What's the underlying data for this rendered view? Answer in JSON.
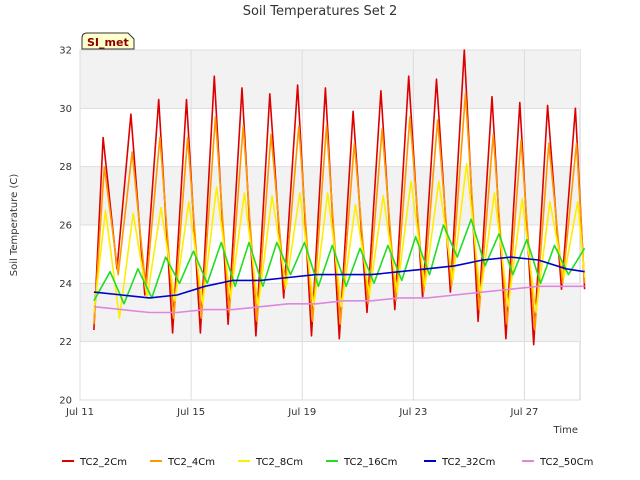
{
  "chart_data": {
    "type": "line",
    "title": "Soil Temperatures Set 2",
    "xlabel": "Time",
    "ylabel": "Soil Temperature (C)",
    "badge": "SI_met",
    "xlim": [
      "2023-07-11",
      "2023-07-29"
    ],
    "ylim": [
      20,
      32
    ],
    "yticks": [
      20,
      22,
      24,
      26,
      28,
      30,
      32
    ],
    "xticks": [
      {
        "date": "2023-07-11",
        "label": "Jul 11"
      },
      {
        "date": "2023-07-15",
        "label": "Jul 15"
      },
      {
        "date": "2023-07-19",
        "label": "Jul 19"
      },
      {
        "date": "2023-07-23",
        "label": "Jul 23"
      },
      {
        "date": "2023-07-27",
        "label": "Jul 27"
      }
    ],
    "grid": true,
    "legend_position": "bottom",
    "series": [
      {
        "name": "TC2_2Cm",
        "color": "#dd0000",
        "x": [
          "2023-07-11 12:00",
          "2023-07-11 20:00",
          "2023-07-12 08:00",
          "2023-07-12 20:00",
          "2023-07-13 08:00",
          "2023-07-13 20:00",
          "2023-07-14 08:00",
          "2023-07-14 20:00",
          "2023-07-15 08:00",
          "2023-07-15 20:00",
          "2023-07-16 08:00",
          "2023-07-16 20:00",
          "2023-07-17 08:00",
          "2023-07-17 20:00",
          "2023-07-18 08:00",
          "2023-07-18 20:00",
          "2023-07-19 08:00",
          "2023-07-19 20:00",
          "2023-07-20 08:00",
          "2023-07-20 20:00",
          "2023-07-21 08:00",
          "2023-07-21 20:00",
          "2023-07-22 08:00",
          "2023-07-22 20:00",
          "2023-07-23 08:00",
          "2023-07-23 20:00",
          "2023-07-24 08:00",
          "2023-07-24 20:00",
          "2023-07-25 08:00",
          "2023-07-25 20:00",
          "2023-07-26 08:00",
          "2023-07-26 20:00",
          "2023-07-27 08:00",
          "2023-07-27 20:00",
          "2023-07-28 08:00",
          "2023-07-28 20:00",
          "2023-07-29 04:00"
        ],
        "y": [
          22.4,
          29.0,
          24.5,
          29.8,
          23.6,
          30.3,
          22.3,
          30.3,
          22.3,
          31.1,
          22.6,
          30.7,
          22.2,
          30.5,
          23.5,
          30.8,
          22.2,
          30.7,
          22.1,
          29.9,
          23.0,
          30.6,
          23.1,
          31.1,
          23.5,
          31.0,
          23.7,
          32.0,
          22.7,
          30.4,
          22.1,
          30.2,
          21.9,
          30.1,
          23.8,
          30.0,
          23.8
        ]
      },
      {
        "name": "TC2_4Cm",
        "color": "#ff9900",
        "x": [
          "2023-07-11 12:00",
          "2023-07-11 21:00",
          "2023-07-12 09:00",
          "2023-07-12 21:00",
          "2023-07-13 09:00",
          "2023-07-13 21:00",
          "2023-07-14 09:00",
          "2023-07-14 21:00",
          "2023-07-15 09:00",
          "2023-07-15 21:00",
          "2023-07-16 09:00",
          "2023-07-16 21:00",
          "2023-07-17 09:00",
          "2023-07-17 21:00",
          "2023-07-18 09:00",
          "2023-07-18 21:00",
          "2023-07-19 09:00",
          "2023-07-19 21:00",
          "2023-07-20 09:00",
          "2023-07-20 21:00",
          "2023-07-21 09:00",
          "2023-07-21 21:00",
          "2023-07-22 09:00",
          "2023-07-22 21:00",
          "2023-07-23 09:00",
          "2023-07-23 21:00",
          "2023-07-24 09:00",
          "2023-07-24 21:00",
          "2023-07-25 09:00",
          "2023-07-25 21:00",
          "2023-07-26 09:00",
          "2023-07-26 21:00",
          "2023-07-27 09:00",
          "2023-07-27 21:00",
          "2023-07-28 09:00",
          "2023-07-28 21:00",
          "2023-07-29 04:00"
        ],
        "y": [
          22.6,
          28.0,
          24.3,
          28.5,
          23.8,
          29.0,
          22.8,
          29.0,
          22.8,
          29.7,
          23.0,
          29.4,
          22.7,
          29.1,
          23.8,
          29.4,
          22.7,
          29.4,
          22.6,
          28.8,
          23.3,
          29.3,
          23.4,
          29.7,
          23.7,
          29.6,
          23.9,
          30.5,
          23.1,
          29.1,
          22.6,
          28.9,
          22.4,
          28.8,
          24.0,
          28.8,
          24.0
        ]
      },
      {
        "name": "TC2_8Cm",
        "color": "#ffee00",
        "x": [
          "2023-07-11 12:00",
          "2023-07-11 22:00",
          "2023-07-12 10:00",
          "2023-07-12 22:00",
          "2023-07-13 10:00",
          "2023-07-13 22:00",
          "2023-07-14 10:00",
          "2023-07-14 22:00",
          "2023-07-15 10:00",
          "2023-07-15 22:00",
          "2023-07-16 10:00",
          "2023-07-16 22:00",
          "2023-07-17 10:00",
          "2023-07-17 22:00",
          "2023-07-18 10:00",
          "2023-07-18 22:00",
          "2023-07-19 10:00",
          "2023-07-19 22:00",
          "2023-07-20 10:00",
          "2023-07-20 22:00",
          "2023-07-21 10:00",
          "2023-07-21 22:00",
          "2023-07-22 10:00",
          "2023-07-22 22:00",
          "2023-07-23 10:00",
          "2023-07-23 22:00",
          "2023-07-24 10:00",
          "2023-07-24 22:00",
          "2023-07-25 10:00",
          "2023-07-25 22:00",
          "2023-07-26 10:00",
          "2023-07-26 22:00",
          "2023-07-27 10:00",
          "2023-07-27 22:00",
          "2023-07-28 10:00",
          "2023-07-28 22:00",
          "2023-07-29 04:00"
        ],
        "y": [
          23.0,
          26.5,
          22.8,
          26.4,
          23.5,
          26.6,
          23.4,
          26.8,
          23.3,
          27.3,
          23.5,
          27.1,
          23.2,
          27.0,
          23.9,
          27.1,
          23.2,
          27.1,
          23.2,
          26.7,
          23.6,
          27.0,
          23.7,
          27.5,
          23.9,
          27.5,
          24.1,
          28.1,
          23.6,
          27.1,
          23.2,
          26.9,
          23.0,
          26.8,
          24.2,
          26.8,
          24.2
        ]
      },
      {
        "name": "TC2_16Cm",
        "color": "#22dd22",
        "x": [
          "2023-07-11 12:00",
          "2023-07-12 02:00",
          "2023-07-12 14:00",
          "2023-07-13 02:00",
          "2023-07-13 14:00",
          "2023-07-14 02:00",
          "2023-07-14 14:00",
          "2023-07-15 02:00",
          "2023-07-15 14:00",
          "2023-07-16 02:00",
          "2023-07-16 14:00",
          "2023-07-17 02:00",
          "2023-07-17 14:00",
          "2023-07-18 02:00",
          "2023-07-18 14:00",
          "2023-07-19 02:00",
          "2023-07-19 14:00",
          "2023-07-20 02:00",
          "2023-07-20 14:00",
          "2023-07-21 02:00",
          "2023-07-21 14:00",
          "2023-07-22 02:00",
          "2023-07-22 14:00",
          "2023-07-23 02:00",
          "2023-07-23 14:00",
          "2023-07-24 02:00",
          "2023-07-24 14:00",
          "2023-07-25 02:00",
          "2023-07-25 14:00",
          "2023-07-26 02:00",
          "2023-07-26 14:00",
          "2023-07-27 02:00",
          "2023-07-27 14:00",
          "2023-07-28 02:00",
          "2023-07-28 14:00",
          "2023-07-29 04:00"
        ],
        "y": [
          23.4,
          24.4,
          23.3,
          24.5,
          23.5,
          24.9,
          24.0,
          25.1,
          24.0,
          25.4,
          23.9,
          25.4,
          23.9,
          25.4,
          24.3,
          25.4,
          23.9,
          25.3,
          23.9,
          25.2,
          24.0,
          25.3,
          24.1,
          25.6,
          24.3,
          26.0,
          24.9,
          26.2,
          24.6,
          25.7,
          24.3,
          25.5,
          24.0,
          25.3,
          24.3,
          25.2
        ]
      },
      {
        "name": "TC2_32Cm",
        "color": "#0000cc",
        "x": [
          "2023-07-11 12:00",
          "2023-07-12 12:00",
          "2023-07-13 12:00",
          "2023-07-14 12:00",
          "2023-07-15 12:00",
          "2023-07-16 12:00",
          "2023-07-17 12:00",
          "2023-07-18 12:00",
          "2023-07-19 12:00",
          "2023-07-20 12:00",
          "2023-07-21 12:00",
          "2023-07-22 12:00",
          "2023-07-23 12:00",
          "2023-07-24 12:00",
          "2023-07-25 12:00",
          "2023-07-26 12:00",
          "2023-07-27 12:00",
          "2023-07-28 12:00",
          "2023-07-29 04:00"
        ],
        "y": [
          23.7,
          23.6,
          23.5,
          23.6,
          23.9,
          24.1,
          24.1,
          24.2,
          24.3,
          24.3,
          24.3,
          24.4,
          24.5,
          24.6,
          24.8,
          24.9,
          24.8,
          24.5,
          24.4
        ]
      },
      {
        "name": "TC2_50Cm",
        "color": "#dd88dd",
        "x": [
          "2023-07-11 12:00",
          "2023-07-12 12:00",
          "2023-07-13 12:00",
          "2023-07-14 12:00",
          "2023-07-15 12:00",
          "2023-07-16 12:00",
          "2023-07-17 12:00",
          "2023-07-18 12:00",
          "2023-07-19 12:00",
          "2023-07-20 12:00",
          "2023-07-21 12:00",
          "2023-07-22 12:00",
          "2023-07-23 12:00",
          "2023-07-24 12:00",
          "2023-07-25 12:00",
          "2023-07-26 12:00",
          "2023-07-27 12:00",
          "2023-07-28 12:00",
          "2023-07-29 04:00"
        ],
        "y": [
          23.2,
          23.1,
          23.0,
          23.0,
          23.1,
          23.1,
          23.2,
          23.3,
          23.3,
          23.4,
          23.4,
          23.5,
          23.5,
          23.6,
          23.7,
          23.8,
          23.9,
          23.9,
          23.9
        ]
      }
    ]
  }
}
